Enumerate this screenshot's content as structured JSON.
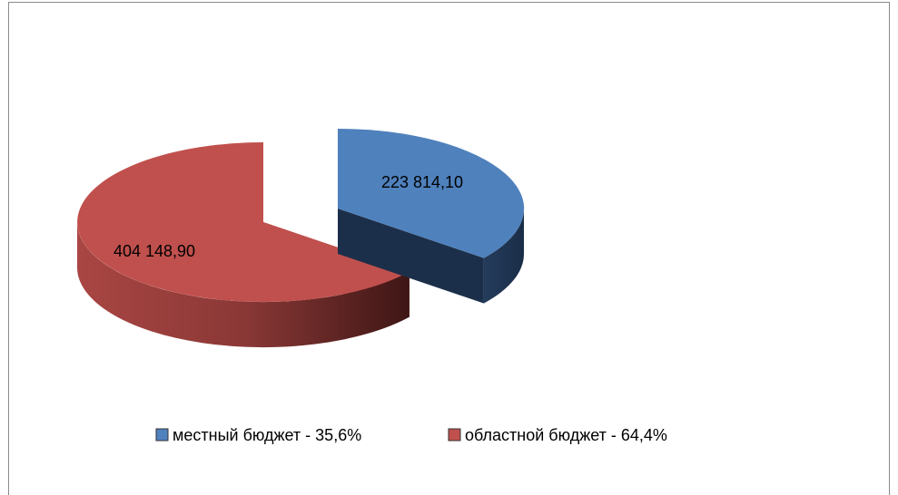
{
  "chart_data": {
    "type": "pie",
    "categories": [
      "местный бюджет - 35,6%",
      "областной бюджет - 64,4%"
    ],
    "values": [
      223814.1,
      404148.9
    ],
    "value_labels": [
      "223 814,10",
      "404 148,90"
    ],
    "colors": [
      "#4f81bd",
      "#c0504d"
    ],
    "legend": "bottom"
  }
}
